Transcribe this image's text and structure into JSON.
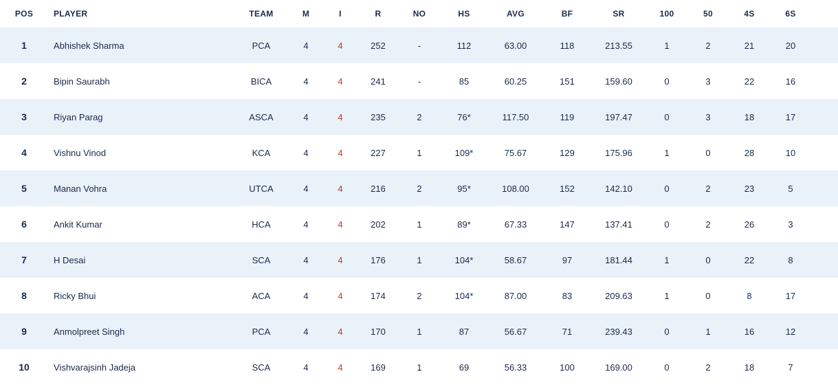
{
  "table": {
    "columns": [
      "POS",
      "PLAYER",
      "TEAM",
      "M",
      "I",
      "R",
      "NO",
      "HS",
      "AVG",
      "BF",
      "SR",
      "100",
      "50",
      "4S",
      "6S"
    ],
    "rows": [
      {
        "pos": "1",
        "player": "Abhishek Sharma",
        "team": "PCA",
        "m": "4",
        "i": "4",
        "r": "252",
        "no": "-",
        "hs": "112",
        "avg": "63.00",
        "bf": "118",
        "sr": "213.55",
        "c100": "1",
        "c50": "2",
        "c4s": "21",
        "c6s": "20"
      },
      {
        "pos": "2",
        "player": "Bipin Saurabh",
        "team": "BICA",
        "m": "4",
        "i": "4",
        "r": "241",
        "no": "-",
        "hs": "85",
        "avg": "60.25",
        "bf": "151",
        "sr": "159.60",
        "c100": "0",
        "c50": "3",
        "c4s": "22",
        "c6s": "16"
      },
      {
        "pos": "3",
        "player": "Riyan Parag",
        "team": "ASCA",
        "m": "4",
        "i": "4",
        "r": "235",
        "no": "2",
        "hs": "76*",
        "avg": "117.50",
        "bf": "119",
        "sr": "197.47",
        "c100": "0",
        "c50": "3",
        "c4s": "18",
        "c6s": "17"
      },
      {
        "pos": "4",
        "player": "Vishnu Vinod",
        "team": "KCA",
        "m": "4",
        "i": "4",
        "r": "227",
        "no": "1",
        "hs": "109*",
        "avg": "75.67",
        "bf": "129",
        "sr": "175.96",
        "c100": "1",
        "c50": "0",
        "c4s": "28",
        "c6s": "10"
      },
      {
        "pos": "5",
        "player": "Manan Vohra",
        "team": "UTCA",
        "m": "4",
        "i": "4",
        "r": "216",
        "no": "2",
        "hs": "95*",
        "avg": "108.00",
        "bf": "152",
        "sr": "142.10",
        "c100": "0",
        "c50": "2",
        "c4s": "23",
        "c6s": "5"
      },
      {
        "pos": "6",
        "player": "Ankit Kumar",
        "team": "HCA",
        "m": "4",
        "i": "4",
        "r": "202",
        "no": "1",
        "hs": "89*",
        "avg": "67.33",
        "bf": "147",
        "sr": "137.41",
        "c100": "0",
        "c50": "2",
        "c4s": "26",
        "c6s": "3"
      },
      {
        "pos": "7",
        "player": "H Desai",
        "team": "SCA",
        "m": "4",
        "i": "4",
        "r": "176",
        "no": "1",
        "hs": "104*",
        "avg": "58.67",
        "bf": "97",
        "sr": "181.44",
        "c100": "1",
        "c50": "0",
        "c4s": "22",
        "c6s": "8"
      },
      {
        "pos": "8",
        "player": "Ricky Bhui",
        "team": "ACA",
        "m": "4",
        "i": "4",
        "r": "174",
        "no": "2",
        "hs": "104*",
        "avg": "87.00",
        "bf": "83",
        "sr": "209.63",
        "c100": "1",
        "c50": "0",
        "c4s": "8",
        "c6s": "17"
      },
      {
        "pos": "9",
        "player": "Anmolpreet Singh",
        "team": "PCA",
        "m": "4",
        "i": "4",
        "r": "170",
        "no": "1",
        "hs": "87",
        "avg": "56.67",
        "bf": "71",
        "sr": "239.43",
        "c100": "0",
        "c50": "1",
        "c4s": "16",
        "c6s": "12"
      },
      {
        "pos": "10",
        "player": "Vishvarajsinh Jadeja",
        "team": "SCA",
        "m": "4",
        "i": "4",
        "r": "169",
        "no": "1",
        "hs": "69",
        "avg": "56.33",
        "bf": "100",
        "sr": "169.00",
        "c100": "0",
        "c50": "2",
        "c4s": "18",
        "c6s": "7"
      }
    ]
  }
}
